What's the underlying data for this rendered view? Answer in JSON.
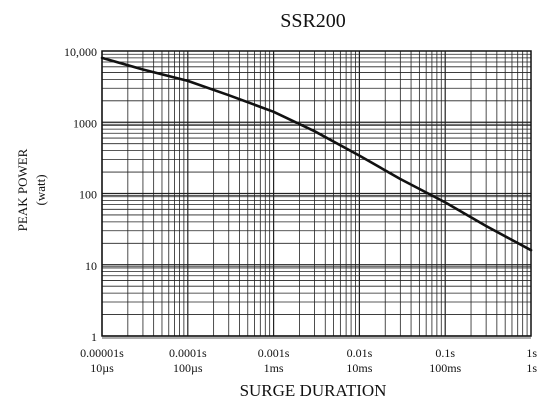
{
  "chart_data": {
    "type": "line",
    "title": "SSR200",
    "ylabel": "PEAK POWER",
    "ylabel_unit": "(watt)",
    "xlabel": "SURGE DURATION",
    "x_scale": "log",
    "y_scale": "log",
    "xlim": [
      1e-05,
      1
    ],
    "ylim": [
      1,
      10000
    ],
    "grid": true,
    "line_color": "#111111",
    "x_tick_labels": [
      {
        "value": 1e-05,
        "line1": "0.00001s",
        "line2": "10µs"
      },
      {
        "value": 0.0001,
        "line1": "0.0001s",
        "line2": "100µs"
      },
      {
        "value": 0.001,
        "line1": "0.001s",
        "line2": "1ms"
      },
      {
        "value": 0.01,
        "line1": "0.01s",
        "line2": "10ms"
      },
      {
        "value": 0.1,
        "line1": "0.1s",
        "line2": "100ms"
      },
      {
        "value": 1,
        "line1": "1s",
        "line2": "1s"
      }
    ],
    "y_tick_labels": [
      {
        "value": 10000,
        "label": "10,000"
      },
      {
        "value": 1000,
        "label": "1000"
      },
      {
        "value": 100,
        "label": "100"
      },
      {
        "value": 10,
        "label": "10"
      },
      {
        "value": 1,
        "label": "1"
      }
    ],
    "series": [
      {
        "x": [
          1e-05,
          3e-05,
          0.0001,
          0.0003,
          0.001,
          0.003,
          0.01,
          0.03,
          0.1,
          0.3,
          1
        ],
        "y": [
          8000,
          5500,
          3800,
          2400,
          1400,
          750,
          340,
          160,
          75,
          35,
          16
        ]
      }
    ]
  }
}
